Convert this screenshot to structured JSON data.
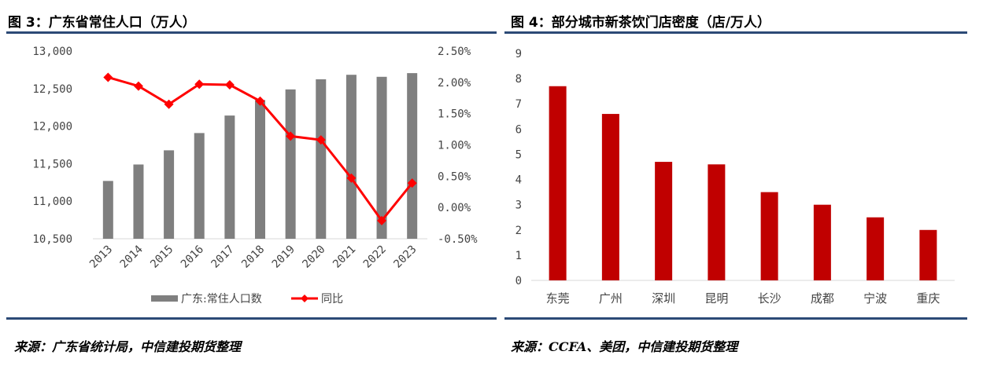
{
  "figures": {
    "left": {
      "title": "图 3：广东省常住人口（万人）",
      "source": "来源：广东省统计局，中信建投期货整理"
    },
    "right": {
      "title": "图 4：部分城市新茶饮门店密度（店/万人）",
      "source": "来源：CCFA、美团，中信建投期货整理"
    }
  },
  "colors": {
    "bar_gray": "#7f7f7f",
    "line_red": "#ff0000",
    "bar_red": "#c00000",
    "rule_blue": "#2c4a76"
  },
  "chart_data": [
    {
      "type": "bar",
      "categories": [
        "2013",
        "2014",
        "2015",
        "2016",
        "2017",
        "2018",
        "2019",
        "2020",
        "2021",
        "2022",
        "2023"
      ],
      "series": [
        {
          "name": "广东:常住人口数",
          "type": "bar",
          "axis": "left",
          "values": [
            11270,
            11489,
            11678,
            11908,
            12141,
            12348,
            12489,
            12624,
            12684,
            12657,
            12706
          ]
        },
        {
          "name": "同比",
          "type": "line",
          "axis": "right",
          "values": [
            2.08,
            1.94,
            1.65,
            1.97,
            1.96,
            1.7,
            1.14,
            1.08,
            0.47,
            -0.21,
            0.39
          ]
        }
      ],
      "ylim": [
        10500,
        13000
      ],
      "y_ticks": [
        "13,000",
        "12,500",
        "12,000",
        "11,500",
        "11,000",
        "10,500"
      ],
      "y2lim": [
        -0.5,
        2.5
      ],
      "y2_ticks": [
        "2.50%",
        "2.00%",
        "1.50%",
        "1.00%",
        "0.50%",
        "0.00%",
        "-0.50%"
      ],
      "legend": [
        "广东:常住人口数",
        "同比"
      ],
      "legend_position": "bottom",
      "grid": false
    },
    {
      "type": "bar",
      "categories": [
        "东莞",
        "广州",
        "深圳",
        "昆明",
        "长沙",
        "成都",
        "宁波",
        "重庆"
      ],
      "values": [
        7.7,
        6.6,
        4.7,
        4.6,
        3.5,
        3.0,
        2.5,
        2.0
      ],
      "ylim": [
        0,
        9
      ],
      "y_ticks": [
        "9",
        "8",
        "7",
        "6",
        "5",
        "4",
        "3",
        "2",
        "1",
        "0"
      ],
      "grid": false
    }
  ]
}
